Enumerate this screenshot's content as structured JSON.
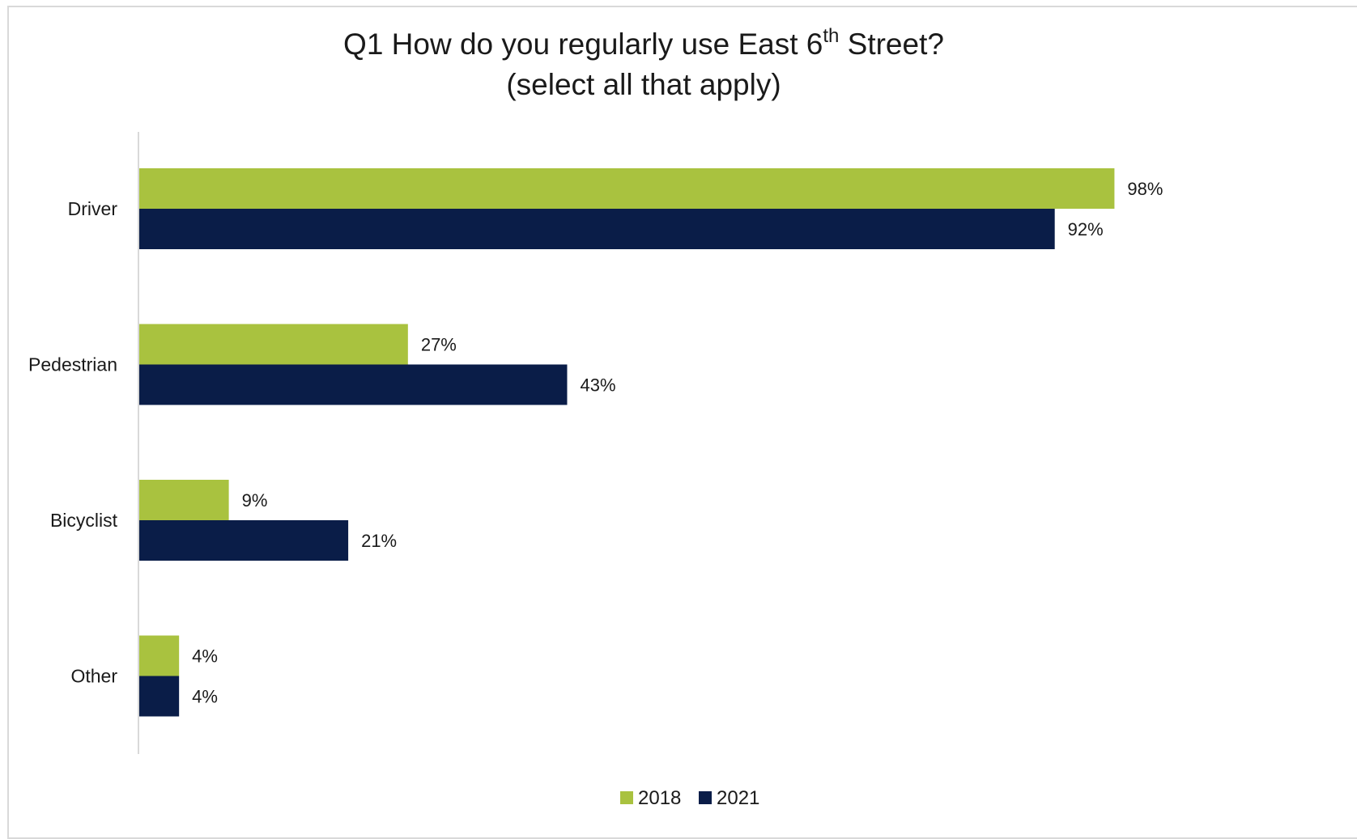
{
  "chart_data": {
    "type": "bar",
    "orientation": "horizontal",
    "title": {
      "main": "Q1 How do you regularly use East 6",
      "superscript": "th",
      "main_end": " Street?",
      "line2": "(select all that apply)"
    },
    "categories": [
      "Driver",
      "Pedestrian",
      "Bicyclist",
      "Other"
    ],
    "series": [
      {
        "name": "2018",
        "color": "#a9c23f",
        "values": [
          98,
          27,
          9,
          4
        ],
        "labels": [
          "98%",
          "27%",
          "9%",
          "4%"
        ]
      },
      {
        "name": "2021",
        "color": "#0a1d48",
        "values": [
          92,
          43,
          21,
          4
        ],
        "labels": [
          "92%",
          "43%",
          "21%",
          "4%"
        ]
      }
    ],
    "xlim": [
      0,
      100
    ],
    "unit": "%",
    "grid": false,
    "legend_position": "bottom",
    "axis_color": "#d9d9d9"
  }
}
